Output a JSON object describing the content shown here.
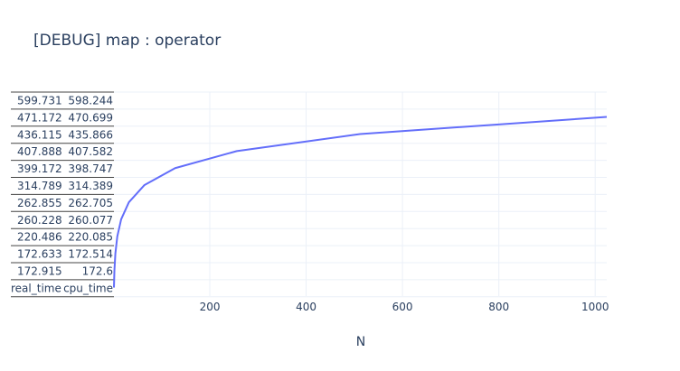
{
  "chart_data": {
    "type": "line",
    "title": "[DEBUG] map : operator",
    "xlabel": "N",
    "ylabel": "",
    "xlim": [
      1,
      1024
    ],
    "x_ticks": [
      "200",
      "400",
      "600",
      "800",
      "1000"
    ],
    "grid": true,
    "series": [
      {
        "x": [
          1,
          2,
          4,
          8,
          16,
          32,
          64,
          128,
          256,
          512,
          1024
        ],
        "y_row_index": [
          0,
          1,
          2,
          3,
          4,
          5,
          6,
          7,
          8,
          9,
          10
        ],
        "color": "#636efa"
      }
    ],
    "table": {
      "columns": [
        "real_time",
        "cpu_time"
      ],
      "rows_bottom_to_top": [
        [
          "172.915",
          "172.6"
        ],
        [
          "172.633",
          "172.514"
        ],
        [
          "220.486",
          "220.085"
        ],
        [
          "260.228",
          "260.077"
        ],
        [
          "262.855",
          "262.705"
        ],
        [
          "314.789",
          "314.389"
        ],
        [
          "399.172",
          "398.747"
        ],
        [
          "407.888",
          "407.582"
        ],
        [
          "436.115",
          "435.866"
        ],
        [
          "471.172",
          "470.699"
        ],
        [
          "599.731",
          "598.244"
        ]
      ]
    }
  }
}
